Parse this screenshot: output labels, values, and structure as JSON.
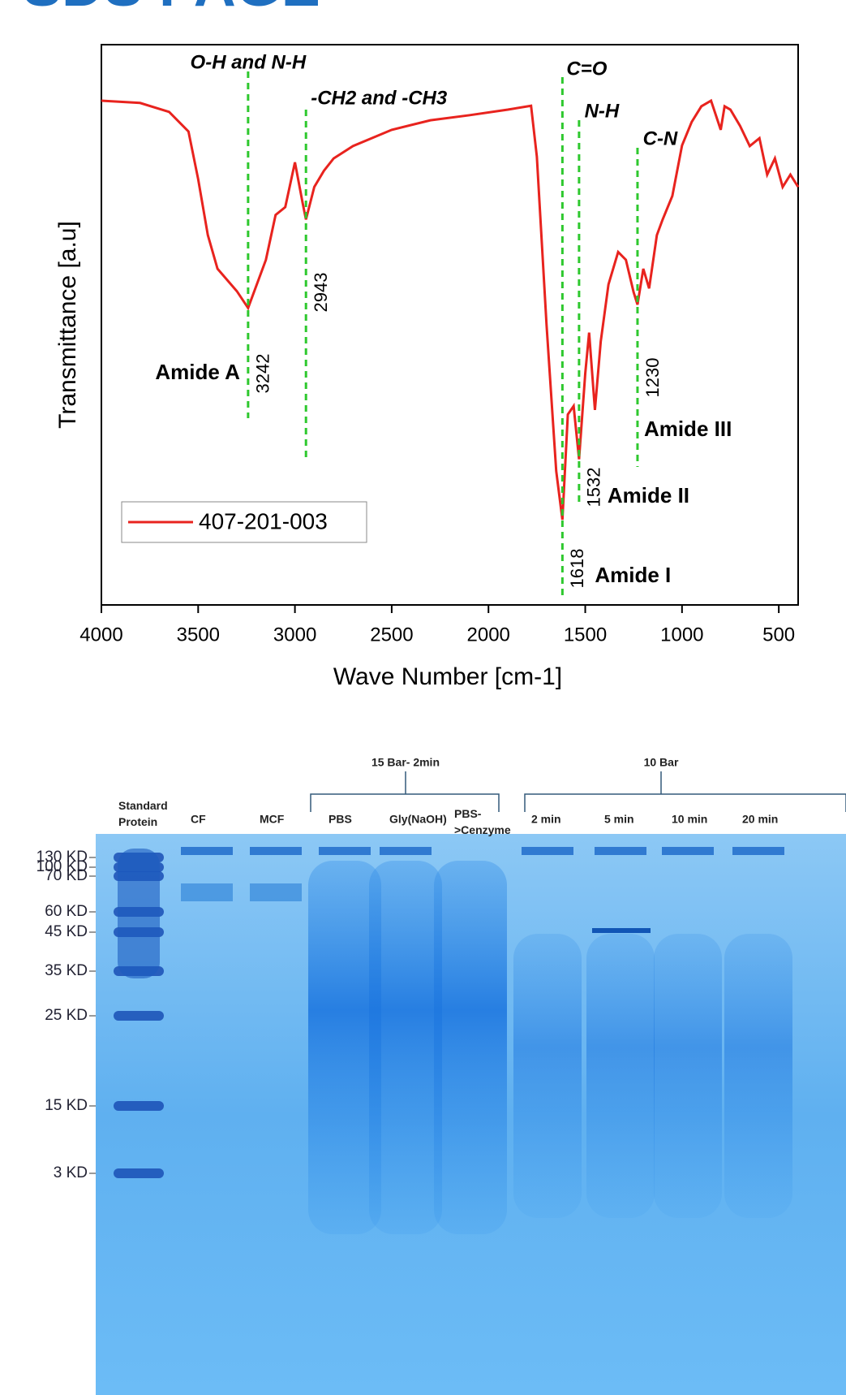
{
  "page_title": "SDS PAGE",
  "chart_data": {
    "type": "line",
    "xlabel": "Wave Number [cm-1]",
    "ylabel": "Transmittance [a.u]",
    "xlim": [
      4000,
      400
    ],
    "xticks": [
      4000,
      3500,
      3000,
      2500,
      2000,
      1500,
      1000,
      500
    ],
    "ylim": [
      0,
      100
    ],
    "legend": "bottom-left",
    "x": [
      4000,
      3800,
      3650,
      3550,
      3500,
      3450,
      3400,
      3300,
      3242,
      3150,
      3100,
      3050,
      3000,
      2960,
      2943,
      2900,
      2850,
      2800,
      2700,
      2500,
      2300,
      2100,
      1900,
      1780,
      1750,
      1700,
      1650,
      1618,
      1590,
      1560,
      1532,
      1500,
      1480,
      1450,
      1420,
      1380,
      1330,
      1290,
      1250,
      1230,
      1200,
      1170,
      1130,
      1100,
      1050,
      1000,
      950,
      900,
      850,
      800,
      780,
      750,
      700,
      650,
      600,
      560,
      520,
      480,
      440,
      400
    ],
    "series": [
      {
        "name": "407-201-003",
        "color": "#e8231e",
        "values": [
          90,
          89.6,
          88,
          84.5,
          76,
          66,
          60,
          56,
          53,
          61.6,
          69.6,
          71,
          79,
          71.7,
          68.8,
          74.6,
          77.5,
          79.7,
          81.9,
          84.8,
          86.5,
          87.4,
          88.4,
          89.1,
          80,
          50,
          23.9,
          15.2,
          34,
          35.5,
          26,
          41.3,
          48.6,
          34.8,
          47,
          57.2,
          63,
          61.6,
          55.8,
          53.6,
          60,
          56.5,
          66,
          68.8,
          73,
          82,
          86.2,
          89,
          90,
          84.8,
          89,
          88.4,
          85.5,
          81.9,
          83.3,
          76.8,
          79.7,
          74.6,
          76.8,
          74.6
        ]
      }
    ],
    "annotations": [
      {
        "x": 3242,
        "label": "O-H and N-H",
        "group": "Amide A"
      },
      {
        "x": 2943,
        "label": "-CH2 and -CH3"
      },
      {
        "x": 1618,
        "label": "C=O",
        "group": "Amide I"
      },
      {
        "x": 1532,
        "label": "N-H",
        "group": "Amide II"
      },
      {
        "x": 1230,
        "label": "C-N",
        "group": "Amide III"
      }
    ]
  },
  "gel": {
    "groups": [
      {
        "label": "15 Bar- 2min"
      },
      {
        "label": "10 Bar"
      }
    ],
    "lanes": [
      "Standard Protein",
      "CF",
      "MCF",
      "PBS",
      "Gly(NaOH)",
      "PBS->Cenzyme",
      "2 min",
      "5 min",
      "10 min",
      "20 min"
    ],
    "markers": [
      "130 KD",
      "100 KD",
      "70 KD",
      "60 KD",
      "45 KD",
      "35 KD",
      "25 KD",
      "15 KD",
      "3 KD"
    ]
  }
}
